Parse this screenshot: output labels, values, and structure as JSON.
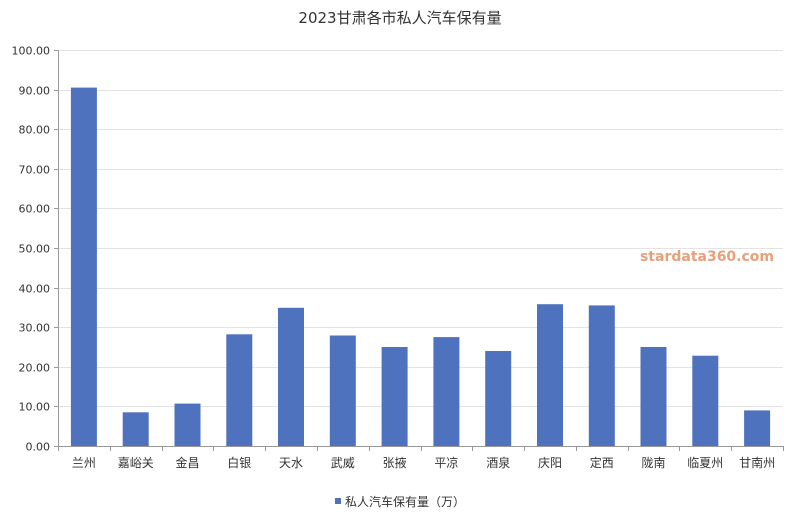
{
  "chart_data": {
    "type": "bar",
    "title": "2023甘肃各市私人汽车保有量",
    "categories": [
      "兰州",
      "嘉峪关",
      "金昌",
      "白银",
      "天水",
      "武威",
      "张掖",
      "平凉",
      "酒泉",
      "庆阳",
      "定西",
      "陇南",
      "临夏州",
      "甘南州"
    ],
    "series": [
      {
        "name": "私人汽车保有量（万）",
        "color": "#4f72be",
        "values": [
          90.5,
          8.5,
          10.7,
          28.2,
          34.9,
          27.9,
          25.0,
          27.5,
          24.0,
          35.8,
          35.5,
          25.0,
          22.8,
          9.0
        ]
      }
    ],
    "ylim": [
      0,
      100
    ],
    "yticks": [
      "0.00",
      "10.00",
      "20.00",
      "30.00",
      "40.00",
      "50.00",
      "60.00",
      "70.00",
      "80.00",
      "90.00",
      "100.00"
    ],
    "grid": true,
    "legend_position": "bottom-center",
    "watermark": "stardata360.com"
  }
}
